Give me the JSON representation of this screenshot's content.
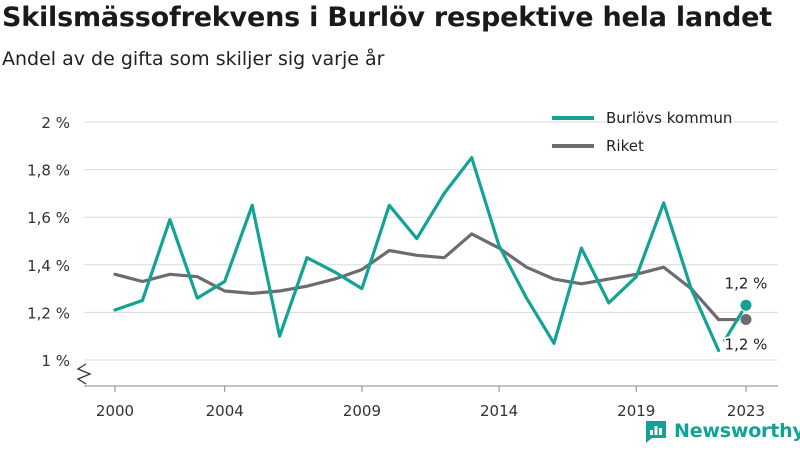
{
  "header": {
    "title": "Skilsmässofrekvens i Burlöv respektive hela landet",
    "subtitle": "Andel av de gifta som skiljer sig varje år"
  },
  "brand": {
    "name": "Newsworthy",
    "color": "#12a394"
  },
  "chart_data": {
    "type": "line",
    "x": [
      2000,
      2001,
      2002,
      2003,
      2004,
      2005,
      2006,
      2007,
      2008,
      2009,
      2010,
      2011,
      2012,
      2013,
      2014,
      2015,
      2016,
      2017,
      2018,
      2019,
      2020,
      2021,
      2022,
      2023
    ],
    "xticks": [
      2000,
      2004,
      2009,
      2014,
      2019,
      2023
    ],
    "yticks": [
      1.0,
      1.2,
      1.4,
      1.6,
      1.8,
      2.0
    ],
    "ytick_labels": [
      "1 %",
      "1,2 %",
      "1,4 %",
      "1,6 %",
      "1,8 %",
      "2 %"
    ],
    "ylim": [
      1.0,
      2.0
    ],
    "grid": true,
    "axis_break": true,
    "legend": "top-right",
    "series": [
      {
        "name": "Burlövs kommun",
        "color": "#12a394",
        "values": [
          1.21,
          1.25,
          1.59,
          1.26,
          1.33,
          1.65,
          1.1,
          1.43,
          1.37,
          1.3,
          1.65,
          1.51,
          1.7,
          1.85,
          1.48,
          1.26,
          1.07,
          1.47,
          1.24,
          1.35,
          1.66,
          1.3,
          1.04,
          1.23
        ],
        "end_label": "1,2 %"
      },
      {
        "name": "Riket",
        "color": "#6d6b70",
        "values": [
          1.36,
          1.33,
          1.36,
          1.35,
          1.29,
          1.28,
          1.29,
          1.31,
          1.34,
          1.38,
          1.46,
          1.44,
          1.43,
          1.53,
          1.47,
          1.39,
          1.34,
          1.32,
          1.34,
          1.36,
          1.39,
          1.3,
          1.17,
          1.17
        ],
        "end_label": "1,2 %"
      }
    ]
  }
}
